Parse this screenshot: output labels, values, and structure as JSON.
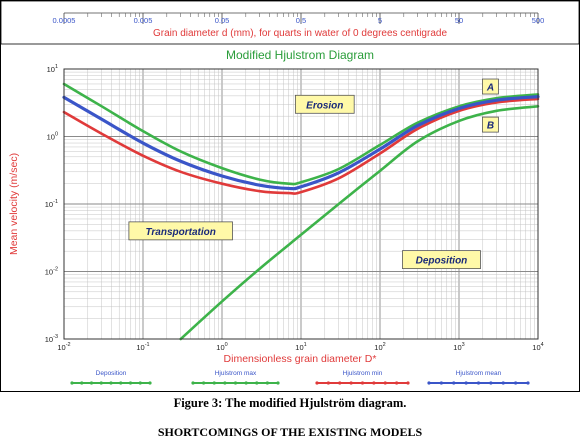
{
  "caption": "Figure 3: The modified Hjulström diagram.",
  "next_heading": "SHORTCOMINGS OF THE EXISTING MODELS",
  "chart_data": {
    "type": "line",
    "title": "Modified Hjulstrom Diagram",
    "xlabel": "Dimensionless grain diameter D*",
    "ylabel": "Mean velocity (m/sec)",
    "x_scale": "log",
    "y_scale": "log",
    "xlim": [
      0.01,
      10000
    ],
    "ylim": [
      0.001,
      10
    ],
    "grid": true,
    "x_ticks": [
      {
        "exp": "-2",
        "value": 0.01
      },
      {
        "exp": "-1",
        "value": 0.1
      },
      {
        "exp": "0",
        "value": 1
      },
      {
        "exp": "1",
        "value": 10
      },
      {
        "exp": "2",
        "value": 100
      },
      {
        "exp": "3",
        "value": 1000
      },
      {
        "exp": "4",
        "value": 10000
      }
    ],
    "y_ticks": [
      {
        "exp": "-3",
        "value": 0.001
      },
      {
        "exp": "-2",
        "value": 0.01
      },
      {
        "exp": "-1",
        "value": 0.1
      },
      {
        "exp": "0",
        "value": 1
      },
      {
        "exp": "1",
        "value": 10
      }
    ],
    "top_axis": {
      "label": "Grain diameter d (mm), for quarts in water of 0 degrees centigrade",
      "ticks": [
        {
          "label": "0.0005",
          "dstar": 0.01
        },
        {
          "label": "0.005",
          "dstar": 0.1
        },
        {
          "label": "0.05",
          "dstar": 1
        },
        {
          "label": "0.5",
          "dstar": 10
        },
        {
          "label": "5",
          "dstar": 100
        },
        {
          "label": "50",
          "dstar": 1000
        },
        {
          "label": "500",
          "dstar": 10000
        }
      ]
    },
    "series": [
      {
        "name": "Deposition",
        "color": "#3db34a",
        "x": [
          0.3,
          1,
          3,
          10,
          30,
          100,
          300,
          1000,
          3000,
          10000
        ],
        "y": [
          0.001,
          0.0036,
          0.011,
          0.035,
          0.1,
          0.31,
          0.85,
          1.7,
          2.4,
          2.8
        ]
      },
      {
        "name": "Hjulstrom max",
        "color": "#3db34a",
        "x": [
          0.01,
          0.03,
          0.1,
          0.3,
          1,
          3,
          7,
          10,
          30,
          100,
          300,
          1000,
          3000,
          10000
        ],
        "y": [
          6,
          2.8,
          1.2,
          0.6,
          0.34,
          0.23,
          0.2,
          0.21,
          0.33,
          0.75,
          1.6,
          2.8,
          3.7,
          4.2
        ]
      },
      {
        "name": "Hjulstrom min",
        "color": "#e03a3a",
        "x": [
          0.01,
          0.03,
          0.1,
          0.3,
          1,
          3,
          7,
          10,
          30,
          100,
          300,
          1000,
          3000,
          10000
        ],
        "y": [
          2.3,
          1.1,
          0.52,
          0.3,
          0.2,
          0.155,
          0.145,
          0.15,
          0.24,
          0.56,
          1.3,
          2.4,
          3.2,
          3.6
        ]
      },
      {
        "name": "Hjulstrom mean",
        "color": "#3a55c8",
        "x": [
          0.01,
          0.03,
          0.1,
          0.3,
          1,
          3,
          7,
          10,
          30,
          100,
          300,
          1000,
          3000,
          10000
        ],
        "y": [
          3.8,
          1.8,
          0.8,
          0.43,
          0.26,
          0.19,
          0.17,
          0.18,
          0.29,
          0.65,
          1.45,
          2.6,
          3.45,
          3.9
        ]
      }
    ],
    "annotations": [
      {
        "text": "Erosion",
        "x": 20,
        "y": 3
      },
      {
        "text": "Transportation",
        "x": 0.3,
        "y": 0.04
      },
      {
        "text": "Deposition",
        "x": 600,
        "y": 0.015
      },
      {
        "text": "A",
        "x": 2500,
        "y": 5.5
      },
      {
        "text": "B",
        "x": 2500,
        "y": 1.5
      }
    ],
    "legend_position": "bottom"
  }
}
